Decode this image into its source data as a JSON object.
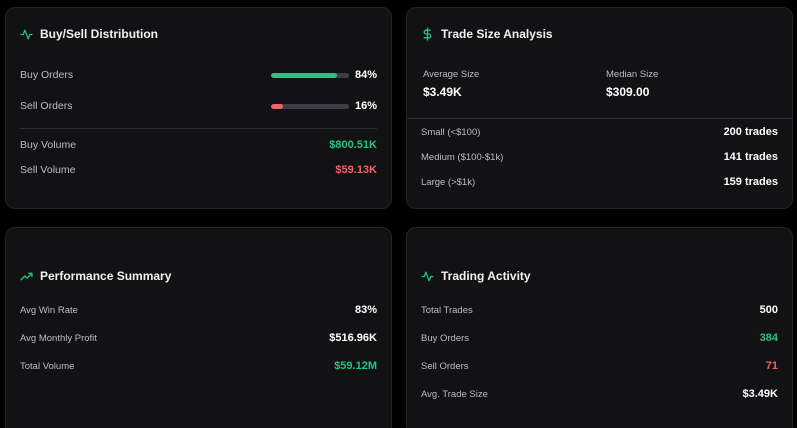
{
  "distribution": {
    "title": "Buy/Sell Distribution",
    "buy_orders_label": "Buy Orders",
    "buy_orders_pct": "84%",
    "buy_fill_fraction": 0.84,
    "sell_orders_label": "Sell Orders",
    "sell_orders_pct": "16%",
    "sell_fill_fraction": 0.16,
    "buy_volume_label": "Buy Volume",
    "buy_volume_value": "$800.51K",
    "sell_volume_label": "Sell Volume",
    "sell_volume_value": "$59.13K"
  },
  "trade_size": {
    "title": "Trade Size Analysis",
    "average_label": "Average Size",
    "average_value": "$3.49K",
    "median_label": "Median Size",
    "median_value": "$309.00",
    "small_label": "Small (<$100)",
    "small_value": "200 trades",
    "medium_label": "Medium ($100-$1k)",
    "medium_value": "141 trades",
    "large_label": "Large (>$1k)",
    "large_value": "159 trades"
  },
  "performance": {
    "title": "Performance Summary",
    "win_rate_label": "Avg Win Rate",
    "win_rate_value": "83%",
    "monthly_profit_label": "Avg Monthly Profit",
    "monthly_profit_value": "$516.96K",
    "total_volume_label": "Total Volume",
    "total_volume_value": "$59.12M"
  },
  "activity": {
    "title": "Trading Activity",
    "total_trades_label": "Total Trades",
    "total_trades_value": "500",
    "buy_orders_label": "Buy Orders",
    "buy_orders_value": "384",
    "sell_orders_label": "Sell Orders",
    "sell_orders_value": "71",
    "avg_trade_label": "Avg. Trade Size",
    "avg_trade_value": "$3.49K"
  },
  "colors": {
    "accent_green": "#22c483",
    "accent_red": "#f0636a",
    "track": "#3a3d47"
  },
  "icons": {
    "distribution": "activity-pulse-icon",
    "trade_size": "dollar-icon",
    "performance": "trending-up-icon",
    "activity": "activity-pulse-icon"
  }
}
